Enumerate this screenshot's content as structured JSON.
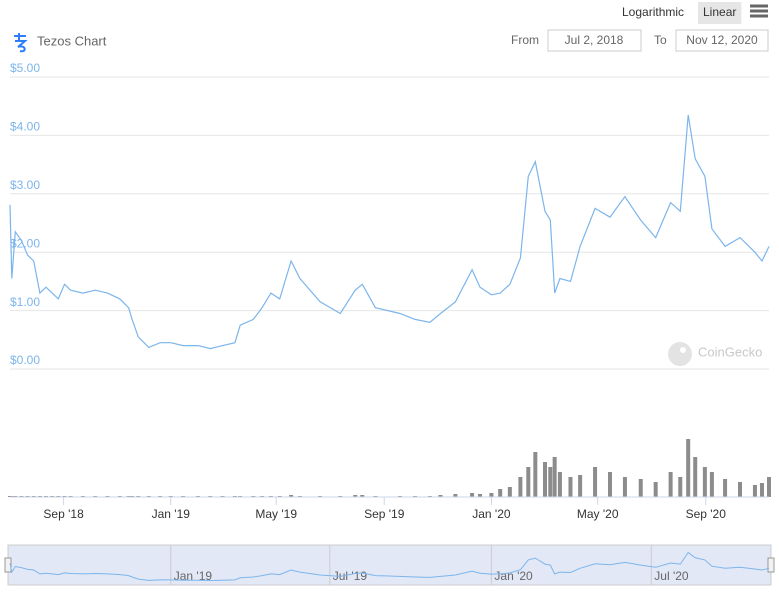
{
  "header": {
    "title": "Tezos Chart",
    "scale_options": [
      "Logarithmic",
      "Linear"
    ],
    "selected_scale": "Linear",
    "from_label": "From",
    "from_date": "Jul 2, 2018",
    "to_label": "To",
    "to_date": "Nov 12, 2020"
  },
  "watermark": "CoinGecko",
  "chart_data": {
    "type": "line",
    "x": [
      "2018-07-02",
      "2018-07-04",
      "2018-07-08",
      "2018-07-15",
      "2018-07-22",
      "2018-07-29",
      "2018-08-05",
      "2018-08-12",
      "2018-08-19",
      "2018-08-26",
      "2018-09-02",
      "2018-09-09",
      "2018-09-23",
      "2018-10-07",
      "2018-10-21",
      "2018-11-04",
      "2018-11-14",
      "2018-11-18",
      "2018-11-25",
      "2018-12-07",
      "2018-12-20",
      "2019-01-01",
      "2019-01-15",
      "2019-02-01",
      "2019-02-15",
      "2019-03-01",
      "2019-03-15",
      "2019-03-21",
      "2019-04-05",
      "2019-04-15",
      "2019-04-25",
      "2019-05-05",
      "2019-05-18",
      "2019-05-28",
      "2019-06-20",
      "2019-07-13",
      "2019-07-30",
      "2019-08-07",
      "2019-08-22",
      "2019-09-19",
      "2019-10-06",
      "2019-10-23",
      "2019-11-04",
      "2019-11-21",
      "2019-12-10",
      "2019-12-19",
      "2020-01-01",
      "2020-01-11",
      "2020-01-22",
      "2020-02-03",
      "2020-02-12",
      "2020-02-20",
      "2020-03-02",
      "2020-03-08",
      "2020-03-13",
      "2020-03-19",
      "2020-03-31",
      "2020-04-11",
      "2020-04-28",
      "2020-05-15",
      "2020-06-01",
      "2020-06-19",
      "2020-07-06",
      "2020-07-23",
      "2020-08-03",
      "2020-08-12",
      "2020-08-20",
      "2020-08-31",
      "2020-09-08",
      "2020-09-23",
      "2020-10-10",
      "2020-10-27",
      "2020-11-04",
      "2020-11-12"
    ],
    "series": [
      {
        "color": "#7cb5ec",
        "values": [
          2.81,
          1.55,
          2.35,
          2.2,
          1.95,
          1.85,
          1.3,
          1.4,
          1.3,
          1.2,
          1.45,
          1.35,
          1.3,
          1.35,
          1.3,
          1.2,
          1.05,
          0.85,
          0.55,
          0.37,
          0.45,
          0.45,
          0.4,
          0.4,
          0.35,
          0.4,
          0.45,
          0.75,
          0.85,
          1.05,
          1.3,
          1.2,
          1.85,
          1.55,
          1.15,
          0.95,
          1.35,
          1.45,
          1.05,
          0.95,
          0.85,
          0.8,
          0.95,
          1.15,
          1.7,
          1.4,
          1.27,
          1.3,
          1.45,
          1.9,
          3.3,
          3.55,
          2.7,
          2.55,
          1.3,
          1.55,
          1.5,
          2.1,
          2.75,
          2.6,
          2.95,
          2.55,
          2.25,
          2.85,
          2.7,
          4.35,
          3.6,
          3.3,
          2.4,
          2.1,
          2.25,
          2.0,
          1.85,
          2.1
        ]
      }
    ],
    "xlim": [
      "2018-07-02",
      "2020-11-12"
    ],
    "xticks": [
      {
        "value": "2018-09-01",
        "label": "Sep '18"
      },
      {
        "value": "2019-01-01",
        "label": "Jan '19"
      },
      {
        "value": "2019-05-01",
        "label": "May '19"
      },
      {
        "value": "2019-09-01",
        "label": "Sep '19"
      },
      {
        "value": "2020-01-01",
        "label": "Jan '20"
      },
      {
        "value": "2020-05-01",
        "label": "May '20"
      },
      {
        "value": "2020-09-01",
        "label": "Sep '20"
      }
    ],
    "ylim": [
      0,
      5
    ],
    "yticks": [
      {
        "value": 0,
        "label": "$0.00"
      },
      {
        "value": 1,
        "label": "$1.00"
      },
      {
        "value": 2,
        "label": "$2.00"
      },
      {
        "value": 3,
        "label": "$3.00"
      },
      {
        "value": 4,
        "label": "$4.00"
      },
      {
        "value": 5,
        "label": "$5.00"
      }
    ],
    "grid": true,
    "volume": {
      "color": "#8c8c8c",
      "ylim": [
        0,
        70
      ],
      "values": [
        1,
        1,
        1,
        1,
        1,
        1,
        1,
        1,
        1,
        1,
        1,
        1,
        1,
        1,
        1,
        1,
        1,
        1,
        1,
        1,
        1,
        1,
        1,
        1,
        1,
        1,
        1,
        1,
        1,
        1,
        1,
        1,
        2,
        1,
        1,
        1,
        2,
        2,
        1,
        1,
        1,
        1,
        2,
        3,
        4,
        3,
        4,
        8,
        10,
        20,
        30,
        45,
        35,
        30,
        40,
        25,
        20,
        22,
        30,
        25,
        20,
        18,
        15,
        25,
        20,
        58,
        40,
        30,
        25,
        18,
        15,
        12,
        14,
        20
      ]
    },
    "navigator": {
      "xticks": [
        {
          "value": "2019-01-01",
          "label": "Jan '19"
        },
        {
          "value": "2019-07-01",
          "label": "Jul '19"
        },
        {
          "value": "2020-01-01",
          "label": "Jan '20"
        },
        {
          "value": "2020-07-01",
          "label": "Jul '20"
        }
      ]
    }
  }
}
